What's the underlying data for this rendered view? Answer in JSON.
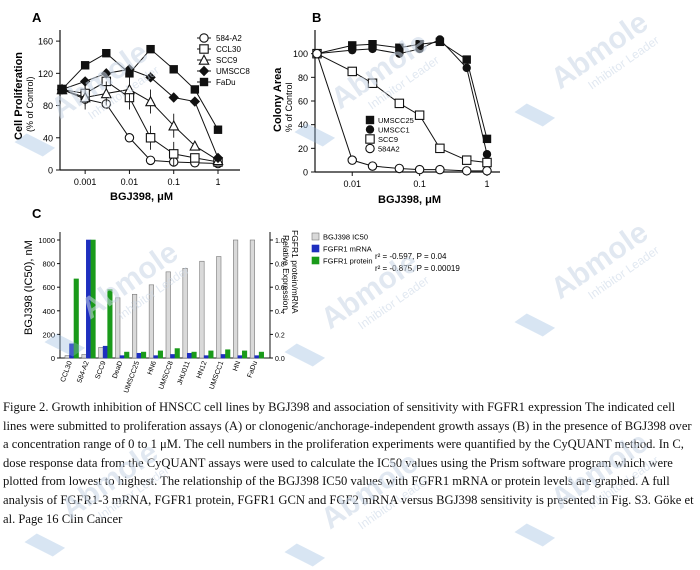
{
  "figure": {
    "panel_labels": [
      "A",
      "B",
      "C"
    ],
    "watermark": {
      "brand": "Abmole",
      "tagline": "Inhibitor Leader"
    }
  },
  "chart_data": [
    {
      "panel": "A",
      "type": "line",
      "xlabel": "BGJ398, μM",
      "ylabel": "Cell Proliferation",
      "ylabel_sub": "(% of Control)",
      "x_scale": "log",
      "x_ticks": [
        "0.001",
        "0.01",
        "0.1",
        "1"
      ],
      "y_ticks": [
        "0",
        "40",
        "80",
        "120",
        "160"
      ],
      "ylim": [
        0,
        180
      ],
      "x": [
        0.0003,
        0.001,
        0.003,
        0.01,
        0.03,
        0.1,
        0.3,
        1
      ],
      "series": [
        {
          "name": "584-A2",
          "marker": "open-circle",
          "values": [
            100,
            88,
            82,
            40,
            12,
            10,
            9,
            8
          ]
        },
        {
          "name": "CCL30",
          "marker": "open-square",
          "values": [
            100,
            95,
            110,
            90,
            40,
            20,
            15,
            10
          ]
        },
        {
          "name": "SCC9",
          "marker": "open-triangle",
          "values": [
            100,
            90,
            95,
            100,
            85,
            55,
            30,
            12
          ]
        },
        {
          "name": "UMSCC8",
          "marker": "filled-diamond",
          "values": [
            100,
            110,
            120,
            125,
            115,
            90,
            85,
            15
          ]
        },
        {
          "name": "FaDu",
          "marker": "filled-square",
          "values": [
            100,
            130,
            145,
            120,
            150,
            125,
            100,
            50
          ]
        }
      ]
    },
    {
      "panel": "B",
      "type": "line",
      "xlabel": "BGJ398, μM",
      "ylabel": "Colony Area",
      "ylabel_sub": "% of Control",
      "x_scale": "log",
      "x_ticks": [
        "0.01",
        "0.1",
        "1"
      ],
      "y_ticks": [
        "0",
        "20",
        "40",
        "60",
        "80",
        "100"
      ],
      "ylim": [
        0,
        120
      ],
      "x": [
        0.003,
        0.01,
        0.02,
        0.05,
        0.1,
        0.2,
        0.5,
        1
      ],
      "series": [
        {
          "name": "UMSCC25",
          "marker": "filled-square",
          "values": [
            100,
            107,
            108,
            105,
            108,
            110,
            95,
            28
          ]
        },
        {
          "name": "UMSCC1",
          "marker": "filled-circle",
          "values": [
            100,
            103,
            104,
            100,
            104,
            112,
            88,
            15
          ]
        },
        {
          "name": "SCC9",
          "marker": "open-square",
          "values": [
            100,
            85,
            75,
            58,
            48,
            20,
            10,
            8
          ]
        },
        {
          "name": "584A2",
          "marker": "open-circle",
          "values": [
            100,
            10,
            5,
            3,
            2,
            2,
            1,
            1
          ]
        }
      ]
    },
    {
      "panel": "C",
      "type": "bar",
      "ylabel": "BGJ398 (IC50), nM",
      "ylabel_right": "FGFR1 protein/mRNA",
      "ylabel_right_sub": "Relative Expression",
      "y_ticks": [
        "0",
        "200",
        "400",
        "600",
        "800",
        "1000"
      ],
      "y_ticks_right": [
        "0.0",
        "0.2",
        "0.4",
        "0.6",
        "0.8",
        "1.0"
      ],
      "ylim": [
        0,
        1000
      ],
      "categories": [
        "CCL30",
        "584-A2",
        "SCC9",
        "DeaD",
        "UMSCC25",
        "HN6",
        "UMSCC8",
        "JHU011",
        "HN12",
        "UMSCC1",
        "HN",
        "FaDu"
      ],
      "series": [
        {
          "name": "BGJ398 IC50",
          "axis": "left",
          "values": [
            20,
            30,
            90,
            510,
            540,
            620,
            730,
            760,
            820,
            860,
            1000,
            1000
          ]
        },
        {
          "name": "FGFR1 mRNA",
          "axis": "right",
          "values": [
            0.12,
            1.0,
            0.1,
            0.02,
            0.04,
            0.02,
            0.03,
            0.04,
            0.02,
            0.03,
            0.02,
            0.02
          ]
        },
        {
          "name": "FGFR1 protein",
          "axis": "right",
          "values": [
            0.67,
            1.0,
            0.58,
            0.05,
            0.05,
            0.06,
            0.08,
            0.05,
            0.06,
            0.07,
            0.06,
            0.05
          ]
        }
      ],
      "annotations": [
        "r² = -0.597, P = 0.04",
        "r² = -0.875, P = 0.00019"
      ]
    }
  ],
  "caption": "Figure 2. Growth inhibition of HNSCC cell lines by BGJ398 and association of sensitivity with FGFR1 expression The indicated cell lines were submitted to proliferation assays (A) or clonogenic/anchorage-independent growth assays (B) in the presence of BGJ398 over a concentration range of 0 to 1 μM. The cell numbers in the proliferation experiments were quantified by the CyQUANT method. In C, dose response data from the CyQUANT assays were used to calculate the IC50 values using the Prism software program which were plotted from lowest to highest. The relationship of the BGJ398 IC50 values with FGFR1 mRNA or protein levels are graphed. A full analysis of FGFR1-3 mRNA, FGFR1 protein, FGFR1 GCN and FGF2 mRNA versus BGJ398 sensitivity is presented in Fig. S3. Göke et al. Page 16 Clin Cancer"
}
